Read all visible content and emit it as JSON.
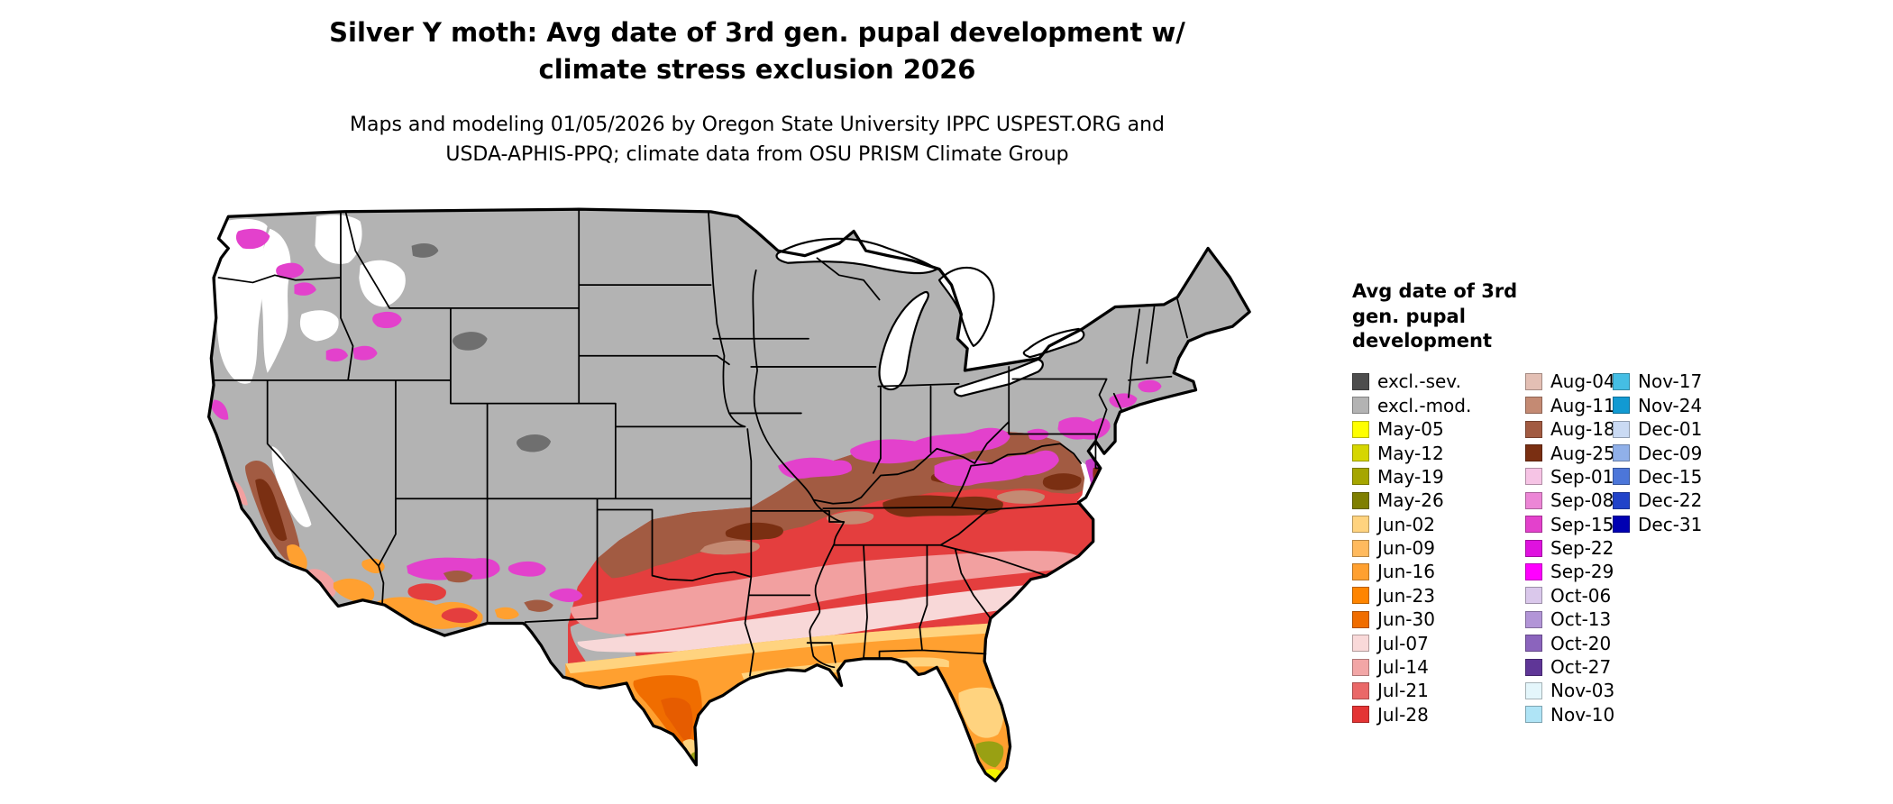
{
  "title": "Silver Y moth: Avg date of 3rd gen. pupal development w/ climate stress exclusion 2026",
  "subtitle": "Maps and modeling 01/05/2026 by Oregon State University IPPC USPEST.ORG and USDA-APHIS-PPQ; climate data from OSU PRISM Climate Group",
  "legend": {
    "title": "Avg date of 3rd gen. pupal development",
    "columns": [
      {
        "items": [
          {
            "label": "excl.-sev.",
            "color": "#4d4d4d"
          },
          {
            "label": "excl.-mod.",
            "color": "#b3b3b3"
          },
          {
            "label": "May-05",
            "color": "#ffff00"
          },
          {
            "label": "May-12",
            "color": "#d6d600"
          },
          {
            "label": "May-19",
            "color": "#a6a600"
          },
          {
            "label": "May-26",
            "color": "#7f7f00"
          },
          {
            "label": "Jun-02",
            "color": "#ffd37f"
          },
          {
            "label": "Jun-09",
            "color": "#ffba5e"
          },
          {
            "label": "Jun-16",
            "color": "#ffa030"
          },
          {
            "label": "Jun-23",
            "color": "#ff8500"
          },
          {
            "label": "Jun-30",
            "color": "#f06d00"
          },
          {
            "label": "Jul-07",
            "color": "#f9d9d9"
          },
          {
            "label": "Jul-14",
            "color": "#f2a6a6"
          },
          {
            "label": "Jul-21",
            "color": "#ea6868"
          },
          {
            "label": "Jul-28",
            "color": "#e43434"
          }
        ]
      },
      {
        "items": [
          {
            "label": "Aug-04",
            "color": "#e3bfb4"
          },
          {
            "label": "Aug-11",
            "color": "#c48a73"
          },
          {
            "label": "Aug-18",
            "color": "#a25b42"
          },
          {
            "label": "Aug-25",
            "color": "#7a2f12"
          },
          {
            "label": "Sep-01",
            "color": "#f6c4e5"
          },
          {
            "label": "Sep-08",
            "color": "#ec86d6"
          },
          {
            "label": "Sep-15",
            "color": "#e341cc"
          },
          {
            "label": "Sep-22",
            "color": "#df12df"
          },
          {
            "label": "Sep-29",
            "color": "#ff00ff"
          },
          {
            "label": "Oct-06",
            "color": "#dac8eb"
          },
          {
            "label": "Oct-13",
            "color": "#b295d7"
          },
          {
            "label": "Oct-20",
            "color": "#8b64bd"
          },
          {
            "label": "Oct-27",
            "color": "#5f3697"
          },
          {
            "label": "Nov-03",
            "color": "#e4f6fb"
          },
          {
            "label": "Nov-10",
            "color": "#afe4f6"
          }
        ]
      },
      {
        "items": [
          {
            "label": "Nov-17",
            "color": "#45bee4"
          },
          {
            "label": "Nov-24",
            "color": "#129ad2"
          },
          {
            "label": "Dec-01",
            "color": "#cadaf3"
          },
          {
            "label": "Dec-09",
            "color": "#90b0e9"
          },
          {
            "label": "Dec-15",
            "color": "#4c76d9"
          },
          {
            "label": "Dec-22",
            "color": "#2143c9"
          },
          {
            "label": "Dec-31",
            "color": "#0000b2"
          }
        ]
      }
    ]
  }
}
